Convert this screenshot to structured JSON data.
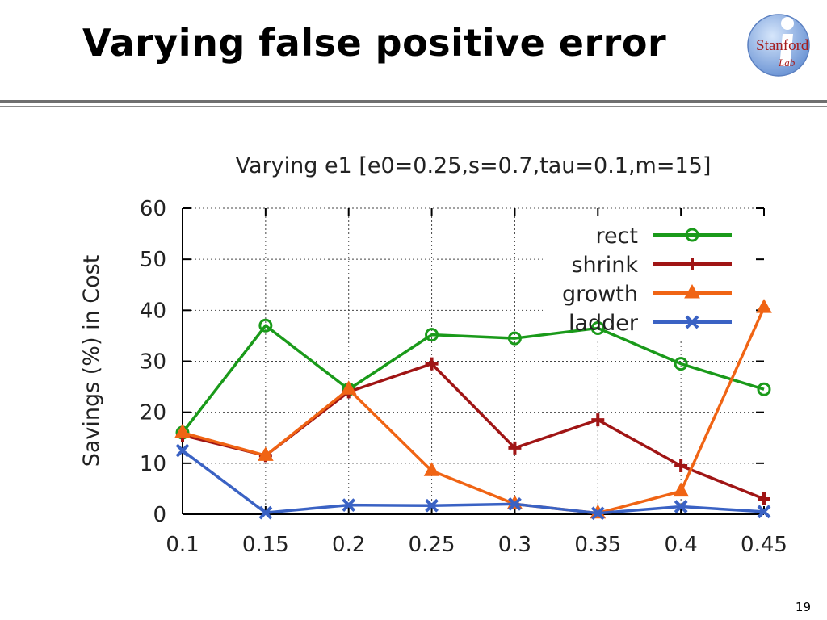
{
  "slide": {
    "title": "Varying false positive error",
    "page_number": "19",
    "logo_text": [
      "Stanford",
      "Lab"
    ]
  },
  "chart_data": {
    "type": "line",
    "title": "Varying e1 [e0=0.25,s=0.7,tau=0.1,m=15]",
    "xlabel": "",
    "ylabel": "Savings (%) in Cost",
    "x": [
      0.1,
      0.15,
      0.2,
      0.25,
      0.3,
      0.35,
      0.4,
      0.45
    ],
    "x_tick_labels": [
      "0.1",
      "0.15",
      "0.2",
      "0.25",
      "0.3",
      "0.35",
      "0.4",
      "0.45"
    ],
    "ylim": [
      0,
      60
    ],
    "y_ticks": [
      0,
      10,
      20,
      30,
      40,
      50,
      60
    ],
    "grid": true,
    "legend_position": "top-right",
    "series": [
      {
        "name": "rect",
        "color": "#1a9a1a",
        "marker": "circle",
        "values": [
          16,
          37,
          24.5,
          35.2,
          34.5,
          36.5,
          29.5,
          24.5
        ]
      },
      {
        "name": "shrink",
        "color": "#a01515",
        "marker": "plus",
        "values": [
          15.5,
          11.5,
          24,
          29.5,
          13,
          18.5,
          9.5,
          3
        ]
      },
      {
        "name": "growth",
        "color": "#f06414",
        "marker": "triangle",
        "values": [
          16,
          11.5,
          24.5,
          8.5,
          2,
          0.2,
          4.5,
          40.5
        ]
      },
      {
        "name": "ladder",
        "color": "#3a62c4",
        "marker": "x",
        "values": [
          12.5,
          0.3,
          1.8,
          1.7,
          2,
          0.2,
          1.5,
          0.5
        ]
      }
    ]
  }
}
